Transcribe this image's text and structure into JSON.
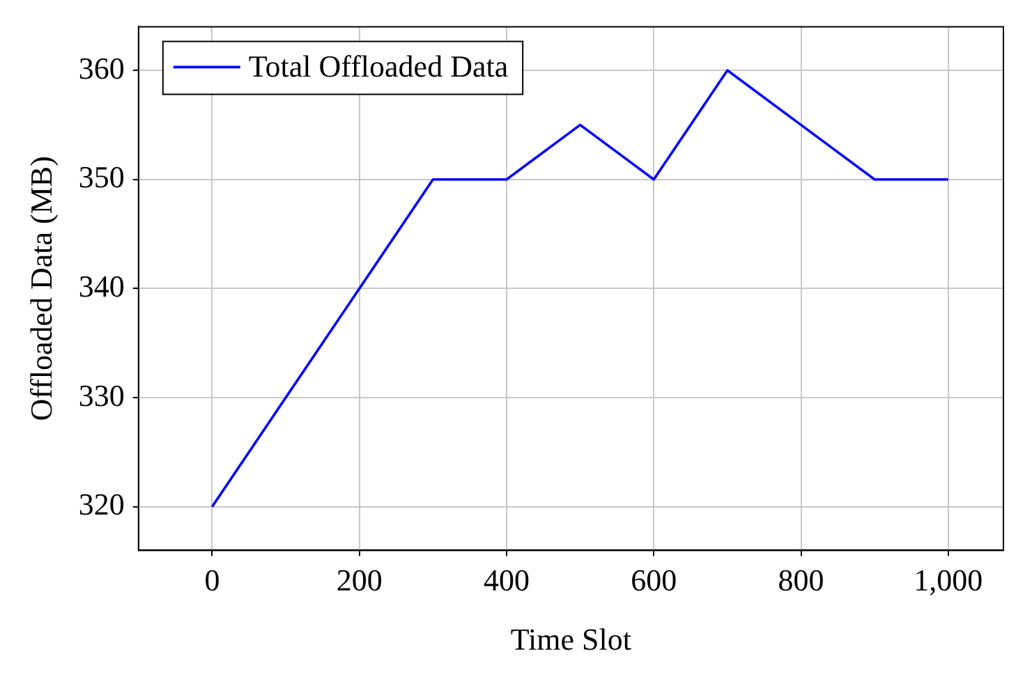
{
  "chart_data": {
    "type": "line",
    "xlabel": "Time Slot",
    "ylabel": "Offloaded Data (MB)",
    "x": [
      0,
      100,
      200,
      300,
      400,
      500,
      600,
      700,
      800,
      900,
      1000
    ],
    "series": [
      {
        "name": "Total Offloaded Data",
        "color": "#0000ff",
        "values": [
          320,
          330,
          340,
          350,
          350,
          355,
          350,
          360,
          355,
          350,
          350
        ]
      }
    ],
    "xlim": [
      -100,
      1075
    ],
    "xticks": [
      0,
      200,
      400,
      600,
      800,
      {
        "value": 1000,
        "label": "1,000"
      }
    ],
    "ylim": [
      316,
      364
    ],
    "yticks": [
      320,
      330,
      340,
      350,
      360
    ],
    "grid": true,
    "legend": "top left",
    "marker": "none",
    "line_style": "solid"
  }
}
